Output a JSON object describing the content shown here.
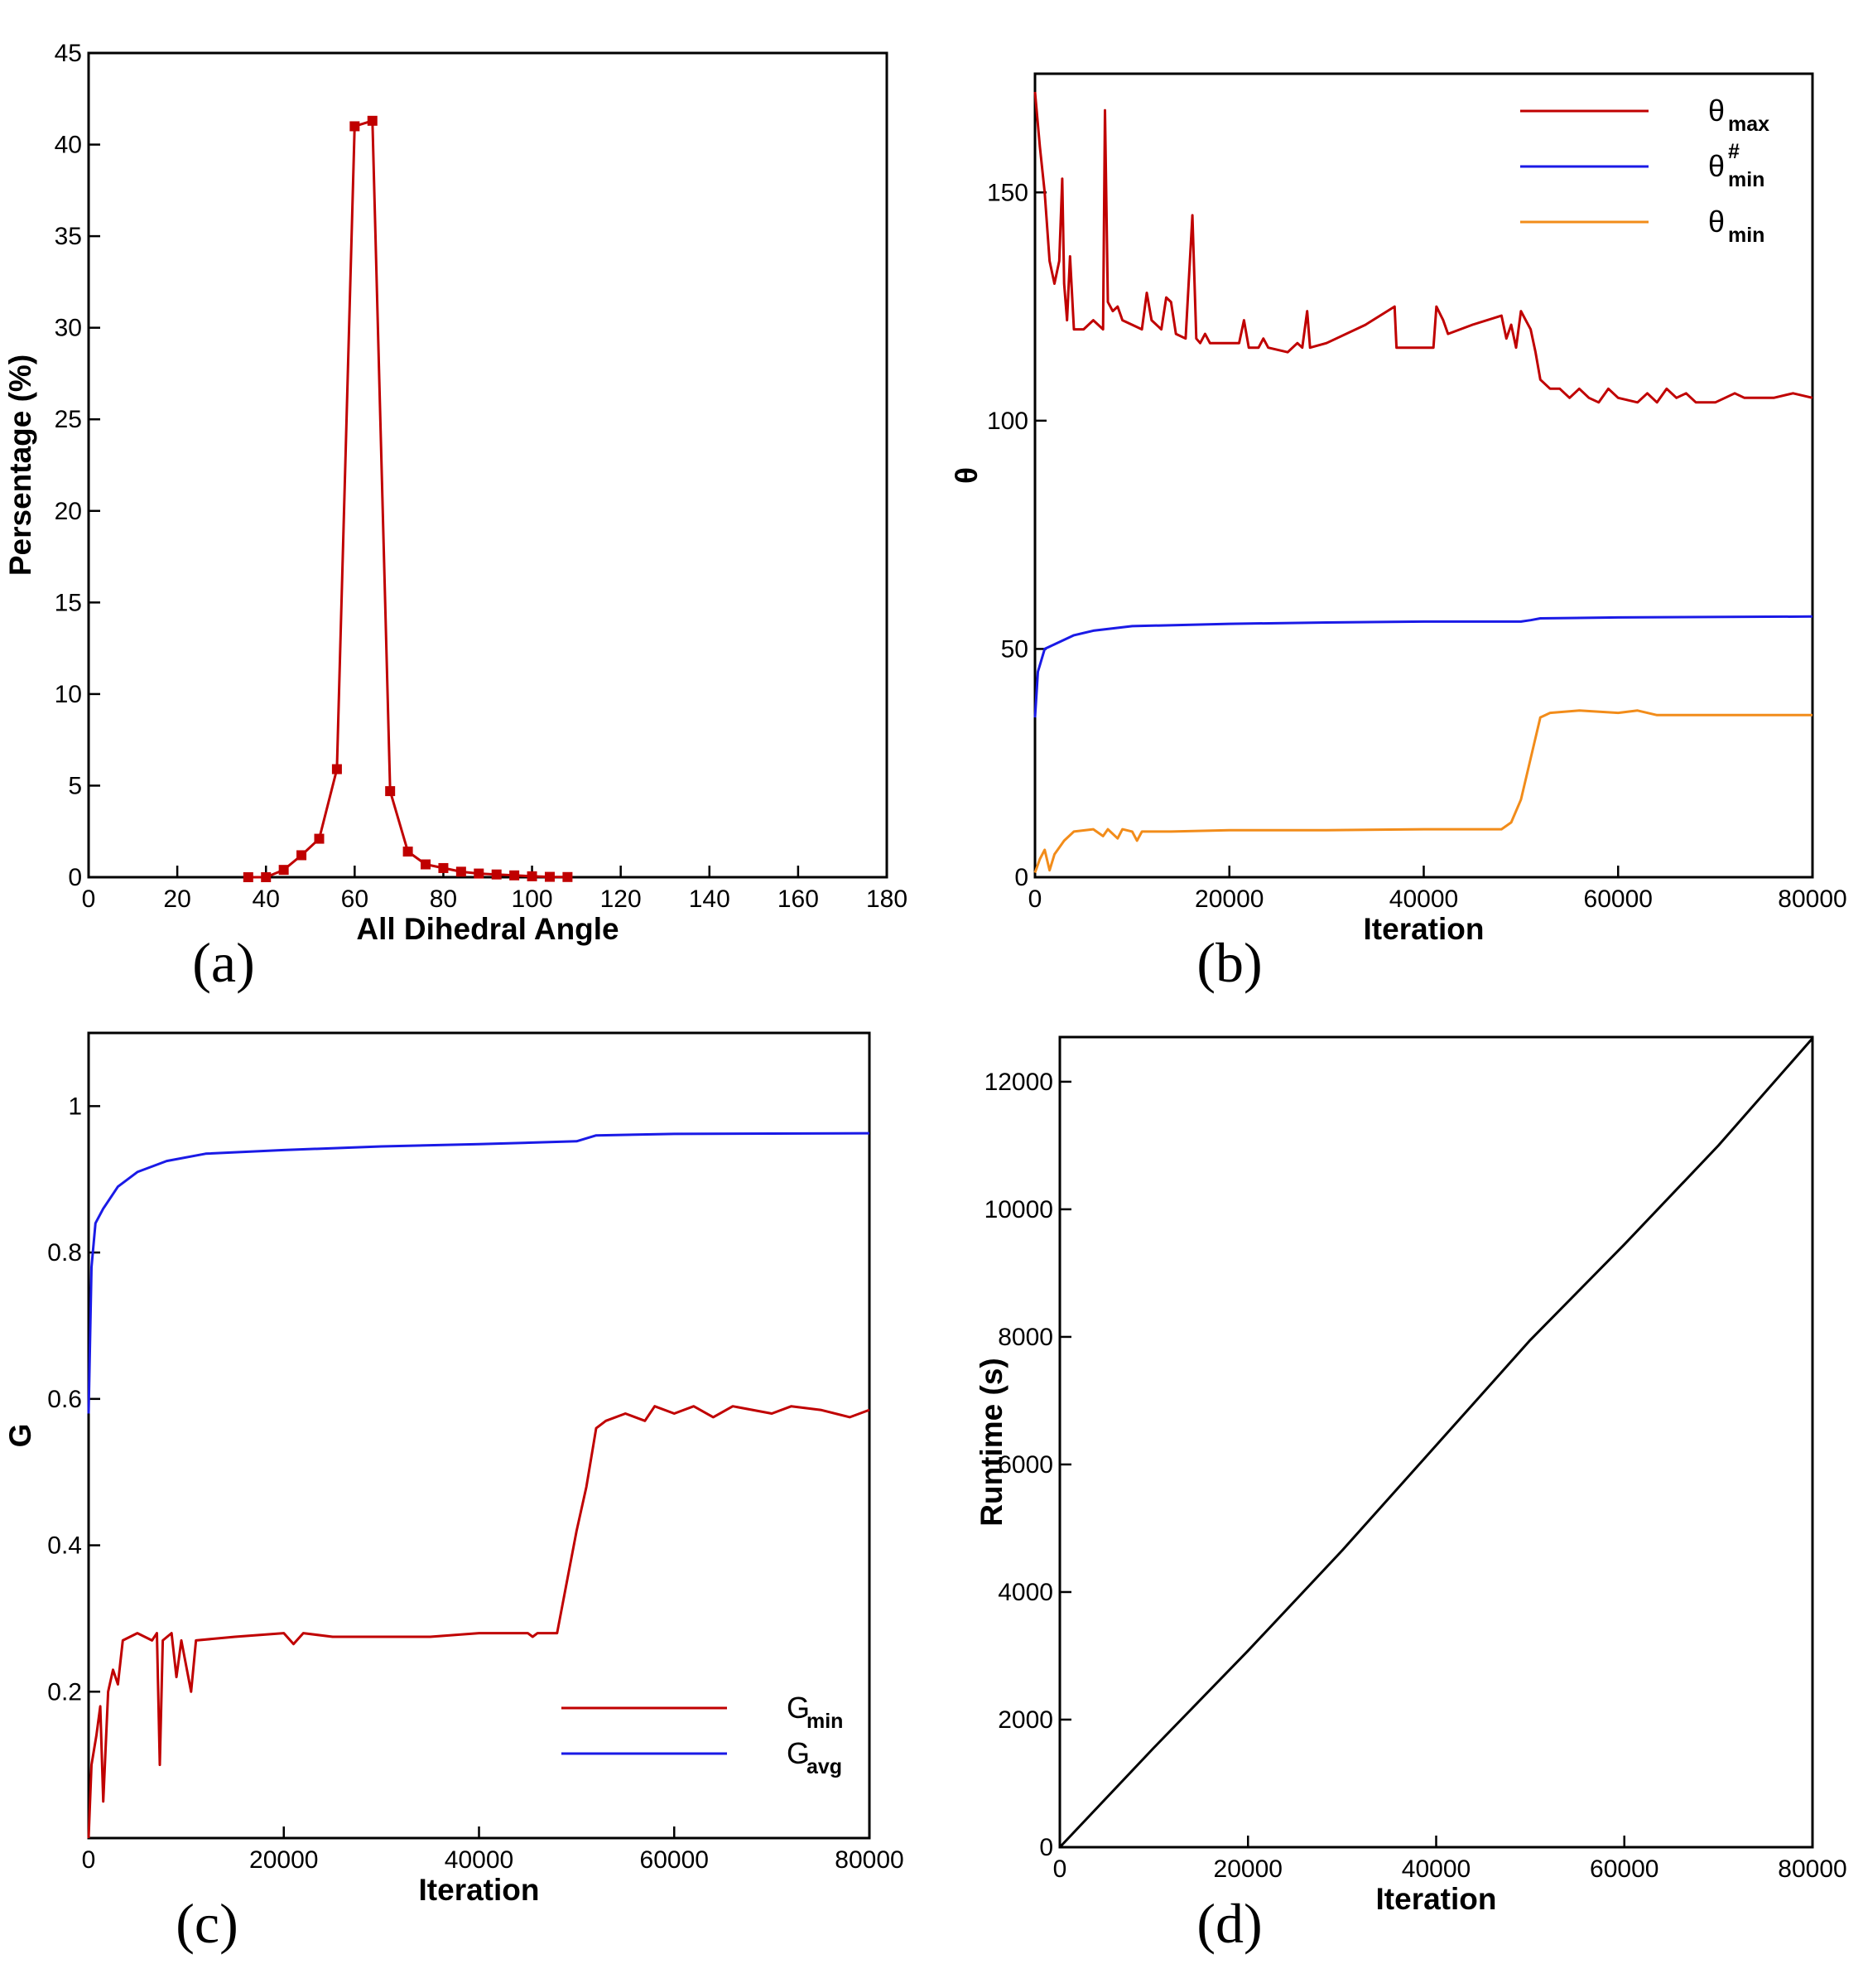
{
  "chart_data": [
    {
      "type": "line",
      "caption": "(a)",
      "xlabel": "All Dihedral Angle",
      "ylabel": "Persentage (%)",
      "xlim": [
        0,
        180
      ],
      "xticks": [
        0,
        20,
        40,
        60,
        80,
        100,
        120,
        140,
        160,
        180
      ],
      "ylim": [
        0,
        45
      ],
      "yticks": [
        0,
        5,
        10,
        15,
        20,
        25,
        30,
        35,
        40,
        45
      ],
      "series": [
        {
          "color": "#c00000",
          "marker": "square",
          "x": [
            36,
            40,
            44,
            48,
            52,
            56,
            60,
            64,
            68,
            72,
            76,
            80,
            84,
            88,
            92,
            96,
            100,
            104,
            108
          ],
          "values": [
            0,
            0,
            0.4,
            1.2,
            2.1,
            5.9,
            41,
            41.3,
            4.7,
            1.4,
            0.7,
            0.5,
            0.3,
            0.2,
            0.15,
            0.1,
            0.05,
            0.02,
            0.01
          ]
        }
      ]
    },
    {
      "type": "line",
      "caption": "(b)",
      "xlabel": "Iteration",
      "ylabel": "θ",
      "legend": "upper right",
      "xlim": [
        0,
        80000
      ],
      "xticks": [
        0,
        20000,
        40000,
        60000,
        80000
      ],
      "ylim": [
        0,
        176
      ],
      "yticks": [
        0,
        50,
        100,
        150
      ],
      "series": [
        {
          "name": {
            "text": "θ",
            "sub": "max"
          },
          "color": "#c00000",
          "x": [
            0,
            500,
            1000,
            1500,
            2000,
            2500,
            2800,
            3000,
            3300,
            3600,
            4000,
            5000,
            6000,
            7000,
            7200,
            7500,
            8000,
            8500,
            9000,
            10000,
            11000,
            11500,
            12000,
            13000,
            13500,
            14000,
            14500,
            15500,
            16200,
            16600,
            17000,
            17500,
            18000,
            21000,
            21500,
            22000,
            23000,
            23500,
            24000,
            26000,
            27000,
            27500,
            28000,
            28300,
            30000,
            34000,
            37000,
            37200,
            41000,
            41300,
            42000,
            42500,
            45000,
            48000,
            48500,
            49000,
            49500,
            50000,
            50500,
            51000,
            51500,
            52000,
            53000,
            54000,
            55000,
            56000,
            57000,
            58000,
            59000,
            60000,
            62000,
            63000,
            64000,
            65000,
            66000,
            67000,
            68000,
            70000,
            71000,
            72000,
            73000,
            76000,
            78000,
            80000
          ],
          "values": [
            172,
            160,
            150,
            135,
            130,
            135,
            153,
            130,
            122,
            136,
            120,
            120,
            122,
            120,
            168,
            126,
            124,
            125,
            122,
            121,
            120,
            128,
            122,
            120,
            127,
            126,
            119,
            118,
            145,
            118,
            117,
            119,
            117,
            117,
            122,
            116,
            116,
            118,
            116,
            115,
            117,
            116,
            124,
            116,
            117,
            121,
            125,
            116,
            116,
            125,
            122,
            119,
            121,
            123,
            118,
            121,
            116,
            124,
            122,
            120,
            115,
            109,
            107,
            107,
            105,
            107,
            105,
            104,
            107,
            105,
            104,
            106,
            104,
            107,
            105,
            106,
            104,
            104,
            105,
            106,
            105,
            105,
            106,
            105
          ]
        },
        {
          "name": {
            "text": "θ",
            "sub": "min",
            "sup": "#"
          },
          "color": "#1a1ae6",
          "x": [
            0,
            300,
            1000,
            2000,
            4000,
            6000,
            10000,
            20000,
            30000,
            40000,
            50000,
            51000,
            52000,
            60000,
            80000
          ],
          "values": [
            35,
            45,
            50,
            51,
            53,
            54,
            55,
            55.5,
            55.8,
            56,
            56,
            56.3,
            56.7,
            56.9,
            57.1
          ]
        },
        {
          "name": {
            "text": "θ",
            "sub": "min"
          },
          "color": "#f28c1a",
          "x": [
            0,
            500,
            1000,
            1500,
            2000,
            3000,
            4000,
            6000,
            7000,
            7500,
            8500,
            9000,
            10000,
            10500,
            11000,
            14000,
            20000,
            30000,
            40000,
            48000,
            49000,
            50000,
            51000,
            52000,
            53000,
            56000,
            60000,
            62000,
            64000,
            66000,
            70000,
            80000
          ],
          "values": [
            1,
            4,
            6,
            1.5,
            5,
            8,
            10,
            10.5,
            9,
            10.5,
            8.5,
            10.5,
            10,
            8,
            10,
            10,
            10.3,
            10.3,
            10.5,
            10.5,
            12,
            17,
            26,
            35,
            36,
            36.5,
            36,
            36.5,
            35.5,
            35.5,
            35.5,
            35.5
          ]
        }
      ]
    },
    {
      "type": "line",
      "caption": "(c)",
      "xlabel": "Iteration",
      "ylabel": "G",
      "legend": "lower right",
      "xlim": [
        0,
        80000
      ],
      "xticks": [
        0,
        20000,
        40000,
        60000,
        80000
      ],
      "ylim": [
        0,
        1.1
      ],
      "yticks": [
        0.2,
        0.4,
        0.6,
        0.8,
        1
      ],
      "series": [
        {
          "name": {
            "text": "G",
            "sub": "min"
          },
          "color": "#c00000",
          "x": [
            0,
            300,
            800,
            1200,
            1500,
            2000,
            2500,
            3000,
            3500,
            5000,
            6500,
            7000,
            7300,
            7600,
            8500,
            9000,
            9500,
            10500,
            11000,
            15000,
            20000,
            21000,
            22000,
            25000,
            30000,
            35000,
            40000,
            45000,
            45500,
            46000,
            48000,
            49000,
            50000,
            51000,
            52000,
            53000,
            55000,
            57000,
            58000,
            60000,
            62000,
            64000,
            66000,
            70000,
            72000,
            75000,
            78000,
            80000
          ],
          "values": [
            0,
            0.1,
            0.14,
            0.18,
            0.05,
            0.2,
            0.23,
            0.21,
            0.27,
            0.28,
            0.27,
            0.28,
            0.1,
            0.27,
            0.28,
            0.22,
            0.27,
            0.2,
            0.27,
            0.275,
            0.28,
            0.265,
            0.28,
            0.275,
            0.275,
            0.275,
            0.28,
            0.28,
            0.275,
            0.28,
            0.28,
            0.35,
            0.42,
            0.48,
            0.56,
            0.57,
            0.58,
            0.57,
            0.59,
            0.58,
            0.59,
            0.575,
            0.59,
            0.58,
            0.59,
            0.585,
            0.575,
            0.585
          ]
        },
        {
          "name": {
            "text": "G",
            "sub": "avg"
          },
          "color": "#1a1ae6",
          "x": [
            0,
            300,
            700,
            1500,
            3000,
            5000,
            8000,
            12000,
            20000,
            30000,
            40000,
            50000,
            52000,
            60000,
            80000
          ],
          "values": [
            0.58,
            0.78,
            0.84,
            0.86,
            0.89,
            0.91,
            0.925,
            0.935,
            0.94,
            0.945,
            0.948,
            0.952,
            0.96,
            0.962,
            0.963
          ]
        }
      ]
    },
    {
      "type": "line",
      "caption": "(d)",
      "xlabel": "Iteration",
      "ylabel": "Runtime (s)",
      "xlim": [
        0,
        80000
      ],
      "xticks": [
        0,
        20000,
        40000,
        60000,
        80000
      ],
      "ylim": [
        0,
        12700
      ],
      "yticks": [
        0,
        2000,
        4000,
        6000,
        8000,
        10000,
        12000
      ],
      "series": [
        {
          "color": "#000000",
          "x": [
            0,
            10000,
            20000,
            30000,
            40000,
            50000,
            60000,
            70000,
            80000
          ],
          "values": [
            0,
            1560,
            3080,
            4650,
            6300,
            7950,
            9450,
            11000,
            12680
          ]
        }
      ]
    }
  ]
}
